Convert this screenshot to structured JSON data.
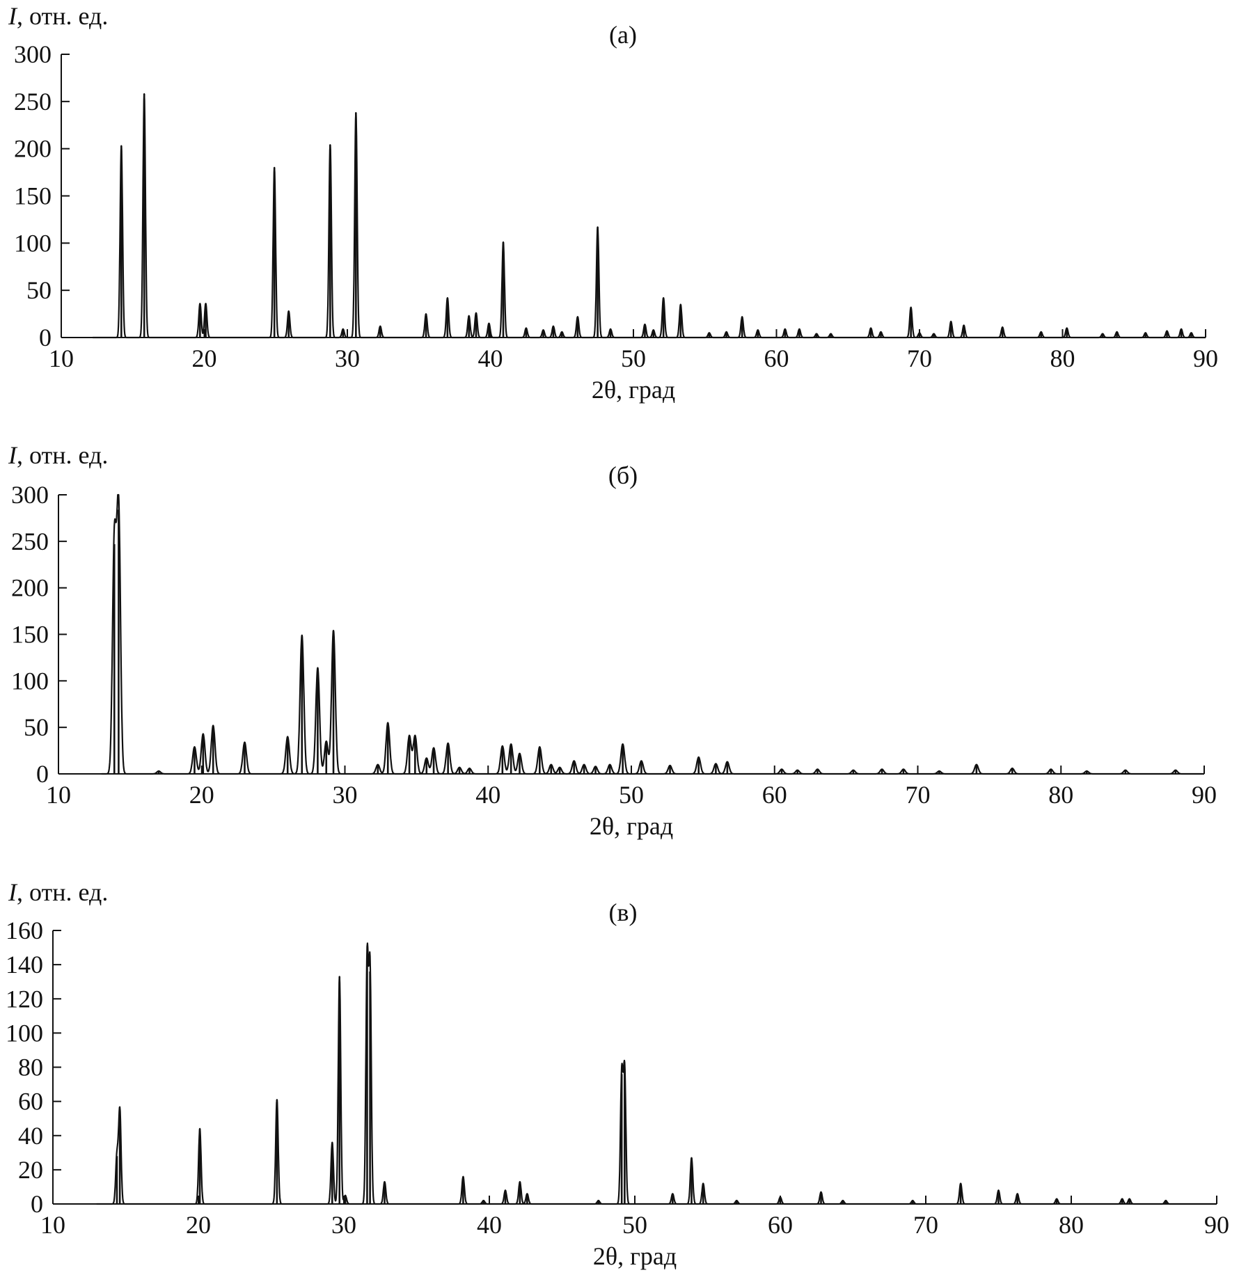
{
  "chart_data": [
    {
      "type": "line",
      "panel_label": "(а)",
      "ylabel_italic": "I",
      "ylabel_rest": ", отн. ед.",
      "xlabel": "2θ, град",
      "xlim": [
        10,
        90
      ],
      "ylim": [
        0,
        300
      ],
      "xticks": [
        10,
        20,
        30,
        40,
        50,
        60,
        70,
        80,
        90
      ],
      "yticks": [
        0,
        50,
        100,
        150,
        200,
        250,
        300
      ],
      "grid": false,
      "peaks": [
        [
          14.2,
          203
        ],
        [
          15.8,
          258
        ],
        [
          19.7,
          36
        ],
        [
          20.1,
          36
        ],
        [
          24.9,
          180
        ],
        [
          25.9,
          28
        ],
        [
          28.8,
          204
        ],
        [
          29.7,
          9
        ],
        [
          30.6,
          238
        ],
        [
          32.3,
          12
        ],
        [
          35.5,
          25
        ],
        [
          37.0,
          42
        ],
        [
          38.5,
          23
        ],
        [
          39.0,
          26
        ],
        [
          39.9,
          15
        ],
        [
          40.9,
          101
        ],
        [
          42.5,
          10
        ],
        [
          43.7,
          8
        ],
        [
          44.4,
          12
        ],
        [
          45.0,
          6
        ],
        [
          46.1,
          22
        ],
        [
          47.5,
          117
        ],
        [
          48.4,
          9
        ],
        [
          50.8,
          14
        ],
        [
          51.4,
          8
        ],
        [
          52.1,
          42
        ],
        [
          53.3,
          35
        ],
        [
          55.3,
          5
        ],
        [
          56.5,
          6
        ],
        [
          57.6,
          22
        ],
        [
          58.7,
          8
        ],
        [
          60.6,
          9
        ],
        [
          61.6,
          9
        ],
        [
          62.8,
          4
        ],
        [
          63.8,
          4
        ],
        [
          66.6,
          10
        ],
        [
          67.3,
          6
        ],
        [
          69.4,
          32
        ],
        [
          70.0,
          5
        ],
        [
          71.0,
          4
        ],
        [
          72.2,
          17
        ],
        [
          73.1,
          13
        ],
        [
          75.8,
          11
        ],
        [
          78.5,
          6
        ],
        [
          80.3,
          10
        ],
        [
          82.8,
          4
        ],
        [
          83.8,
          6
        ],
        [
          85.8,
          5
        ],
        [
          87.3,
          7
        ],
        [
          88.3,
          9
        ],
        [
          89.0,
          5
        ]
      ]
    },
    {
      "type": "line",
      "panel_label": "(б)",
      "ylabel_italic": "I",
      "ylabel_rest": ", отн. ед.",
      "xlabel": "2θ, град",
      "xlim": [
        10,
        90
      ],
      "ylim": [
        0,
        300
      ],
      "xticks": [
        10,
        20,
        30,
        40,
        50,
        60,
        70,
        80,
        90
      ],
      "yticks": [
        0,
        50,
        100,
        150,
        200,
        250,
        300
      ],
      "grid": false,
      "peaks": [
        [
          13.9,
          247
        ],
        [
          14.2,
          284
        ],
        [
          17.0,
          3
        ],
        [
          19.5,
          29
        ],
        [
          20.1,
          43
        ],
        [
          20.8,
          52
        ],
        [
          23.0,
          34
        ],
        [
          26.0,
          40
        ],
        [
          27.0,
          149
        ],
        [
          28.1,
          114
        ],
        [
          28.7,
          35
        ],
        [
          29.2,
          154
        ],
        [
          32.3,
          10
        ],
        [
          33.0,
          55
        ],
        [
          34.5,
          41
        ],
        [
          34.9,
          41
        ],
        [
          35.7,
          17
        ],
        [
          36.2,
          28
        ],
        [
          37.2,
          33
        ],
        [
          38.0,
          7
        ],
        [
          38.7,
          6
        ],
        [
          41.0,
          30
        ],
        [
          41.6,
          32
        ],
        [
          42.2,
          22
        ],
        [
          43.6,
          29
        ],
        [
          44.4,
          10
        ],
        [
          45.0,
          7
        ],
        [
          46.0,
          14
        ],
        [
          46.7,
          10
        ],
        [
          47.5,
          8
        ],
        [
          48.5,
          10
        ],
        [
          49.4,
          32
        ],
        [
          50.7,
          14
        ],
        [
          52.7,
          9
        ],
        [
          54.7,
          18
        ],
        [
          55.9,
          11
        ],
        [
          56.7,
          13
        ],
        [
          60.5,
          5
        ],
        [
          61.6,
          4
        ],
        [
          63.0,
          5
        ],
        [
          65.5,
          4
        ],
        [
          67.5,
          5
        ],
        [
          69.0,
          5
        ],
        [
          71.5,
          3
        ],
        [
          74.1,
          10
        ],
        [
          76.6,
          6
        ],
        [
          79.3,
          5
        ],
        [
          81.8,
          3
        ],
        [
          84.5,
          4
        ],
        [
          88.0,
          4
        ]
      ]
    },
    {
      "type": "line",
      "panel_label": "(в)",
      "ylabel_italic": "I",
      "ylabel_rest": ", отн. ед.",
      "xlabel": "2θ, град",
      "xlim": [
        10,
        90
      ],
      "ylim": [
        0,
        160
      ],
      "xticks": [
        10,
        20,
        30,
        40,
        50,
        60,
        70,
        80,
        90
      ],
      "yticks": [
        0,
        20,
        40,
        60,
        80,
        100,
        120,
        140,
        160
      ],
      "grid": false,
      "peaks": [
        [
          14.4,
          28
        ],
        [
          14.6,
          55
        ],
        [
          20.1,
          44
        ],
        [
          25.4,
          61
        ],
        [
          29.2,
          36
        ],
        [
          29.7,
          133
        ],
        [
          30.1,
          5
        ],
        [
          31.6,
          142
        ],
        [
          31.8,
          136
        ],
        [
          32.8,
          13
        ],
        [
          38.2,
          16
        ],
        [
          39.6,
          2
        ],
        [
          41.1,
          8
        ],
        [
          42.1,
          13
        ],
        [
          42.6,
          6
        ],
        [
          47.5,
          2
        ],
        [
          49.1,
          76
        ],
        [
          49.3,
          78
        ],
        [
          52.6,
          6
        ],
        [
          53.9,
          27
        ],
        [
          54.7,
          12
        ],
        [
          57.0,
          2
        ],
        [
          60.0,
          4
        ],
        [
          62.8,
          7
        ],
        [
          64.3,
          2
        ],
        [
          69.1,
          2
        ],
        [
          72.4,
          12
        ],
        [
          75.0,
          8
        ],
        [
          76.3,
          6
        ],
        [
          79.0,
          3
        ],
        [
          83.5,
          3
        ],
        [
          84.0,
          3
        ],
        [
          86.5,
          2
        ]
      ]
    }
  ]
}
